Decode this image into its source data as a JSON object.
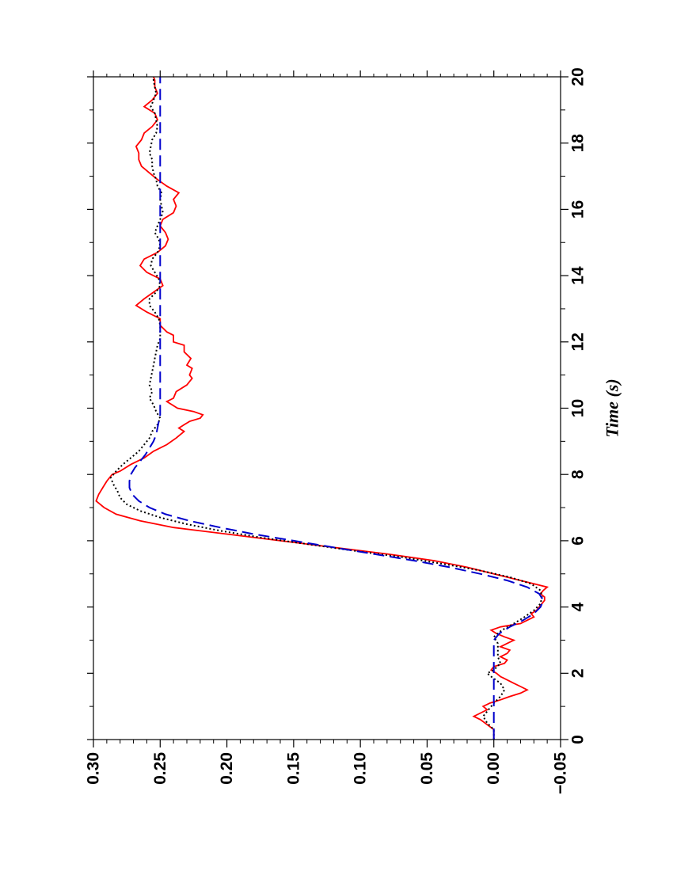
{
  "chart_data": {
    "type": "line",
    "orientation": "rotated-90-ccw",
    "xlabel": "Time (s)",
    "ylabel": "",
    "xlim": [
      0,
      20
    ],
    "ylim": [
      -0.05,
      0.3
    ],
    "x_ticks": [
      "0",
      "2",
      "4",
      "6",
      "8",
      "10",
      "12",
      "14",
      "16",
      "18",
      "20"
    ],
    "y_ticks": [
      "−0.05",
      "0.00",
      "0.05",
      "0.10",
      "0.15",
      "0.20",
      "0.25",
      "0.30"
    ],
    "grid": false,
    "legend": "none",
    "series": [
      {
        "color": "#ff0000",
        "style": "solid",
        "points": [
          [
            0.0,
            0.0
          ],
          [
            0.3,
            0.0
          ],
          [
            0.6,
            0.01
          ],
          [
            0.7,
            0.015
          ],
          [
            0.8,
            0.01
          ],
          [
            0.9,
            0.005
          ],
          [
            1.0,
            0.008
          ],
          [
            1.1,
            0.003
          ],
          [
            1.2,
            -0.005
          ],
          [
            1.3,
            -0.012
          ],
          [
            1.4,
            -0.02
          ],
          [
            1.5,
            -0.025
          ],
          [
            1.6,
            -0.02
          ],
          [
            1.7,
            -0.015
          ],
          [
            1.8,
            -0.01
          ],
          [
            1.9,
            -0.005
          ],
          [
            2.0,
            -0.002
          ],
          [
            2.1,
            0.002
          ],
          [
            2.2,
            0.0
          ],
          [
            2.3,
            -0.008
          ],
          [
            2.4,
            -0.01
          ],
          [
            2.5,
            -0.005
          ],
          [
            2.6,
            -0.01
          ],
          [
            2.7,
            -0.012
          ],
          [
            2.8,
            -0.005
          ],
          [
            2.9,
            -0.01
          ],
          [
            3.0,
            -0.015
          ],
          [
            3.1,
            -0.008
          ],
          [
            3.2,
            -0.002
          ],
          [
            3.3,
            0.002
          ],
          [
            3.4,
            -0.005
          ],
          [
            3.5,
            -0.02
          ],
          [
            3.6,
            -0.025
          ],
          [
            3.7,
            -0.03
          ],
          [
            3.8,
            -0.028
          ],
          [
            3.9,
            -0.032
          ],
          [
            4.0,
            -0.034
          ],
          [
            4.1,
            -0.036
          ],
          [
            4.2,
            -0.038
          ],
          [
            4.3,
            -0.038
          ],
          [
            4.4,
            -0.035
          ],
          [
            4.5,
            -0.037
          ],
          [
            4.6,
            -0.04
          ],
          [
            4.7,
            -0.03
          ],
          [
            4.8,
            -0.02
          ],
          [
            4.9,
            -0.01
          ],
          [
            5.0,
            0.0
          ],
          [
            5.2,
            0.02
          ],
          [
            5.4,
            0.045
          ],
          [
            5.6,
            0.08
          ],
          [
            5.8,
            0.12
          ],
          [
            6.0,
            0.16
          ],
          [
            6.2,
            0.2
          ],
          [
            6.4,
            0.24
          ],
          [
            6.6,
            0.265
          ],
          [
            6.8,
            0.283
          ],
          [
            7.0,
            0.292
          ],
          [
            7.2,
            0.298
          ],
          [
            7.4,
            0.296
          ],
          [
            7.6,
            0.293
          ],
          [
            7.8,
            0.29
          ],
          [
            8.0,
            0.286
          ],
          [
            8.1,
            0.28
          ],
          [
            8.3,
            0.272
          ],
          [
            8.5,
            0.262
          ],
          [
            8.7,
            0.255
          ],
          [
            8.9,
            0.245
          ],
          [
            9.1,
            0.238
          ],
          [
            9.3,
            0.232
          ],
          [
            9.4,
            0.236
          ],
          [
            9.5,
            0.232
          ],
          [
            9.6,
            0.228
          ],
          [
            9.7,
            0.22
          ],
          [
            9.8,
            0.218
          ],
          [
            9.9,
            0.225
          ],
          [
            10.0,
            0.237
          ],
          [
            10.2,
            0.245
          ],
          [
            10.3,
            0.24
          ],
          [
            10.5,
            0.238
          ],
          [
            10.7,
            0.23
          ],
          [
            10.9,
            0.226
          ],
          [
            11.0,
            0.228
          ],
          [
            11.2,
            0.226
          ],
          [
            11.3,
            0.23
          ],
          [
            11.5,
            0.227
          ],
          [
            11.7,
            0.232
          ],
          [
            11.9,
            0.232
          ],
          [
            12.0,
            0.24
          ],
          [
            12.2,
            0.24
          ],
          [
            12.3,
            0.245
          ],
          [
            12.5,
            0.25
          ],
          [
            12.7,
            0.25
          ],
          [
            12.9,
            0.26
          ],
          [
            13.1,
            0.268
          ],
          [
            13.3,
            0.262
          ],
          [
            13.5,
            0.255
          ],
          [
            13.7,
            0.248
          ],
          [
            13.9,
            0.25
          ],
          [
            14.1,
            0.26
          ],
          [
            14.3,
            0.265
          ],
          [
            14.5,
            0.262
          ],
          [
            14.7,
            0.252
          ],
          [
            14.9,
            0.246
          ],
          [
            15.1,
            0.244
          ],
          [
            15.3,
            0.246
          ],
          [
            15.5,
            0.25
          ],
          [
            15.7,
            0.248
          ],
          [
            15.9,
            0.24
          ],
          [
            16.1,
            0.238
          ],
          [
            16.3,
            0.24
          ],
          [
            16.5,
            0.236
          ],
          [
            16.7,
            0.245
          ],
          [
            16.9,
            0.252
          ],
          [
            17.1,
            0.258
          ],
          [
            17.3,
            0.264
          ],
          [
            17.5,
            0.266
          ],
          [
            17.7,
            0.266
          ],
          [
            17.9,
            0.268
          ],
          [
            18.1,
            0.264
          ],
          [
            18.3,
            0.262
          ],
          [
            18.5,
            0.256
          ],
          [
            18.7,
            0.252
          ],
          [
            18.9,
            0.254
          ],
          [
            19.1,
            0.262
          ],
          [
            19.3,
            0.256
          ],
          [
            19.5,
            0.252
          ],
          [
            19.7,
            0.254
          ],
          [
            19.9,
            0.254
          ],
          [
            20.0,
            0.255
          ]
        ]
      },
      {
        "color": "#000000",
        "style": "dotted",
        "points": [
          [
            0.0,
            0.0
          ],
          [
            0.3,
            0.0
          ],
          [
            0.5,
            0.005
          ],
          [
            0.7,
            0.008
          ],
          [
            0.9,
            0.004
          ],
          [
            1.1,
            0.0
          ],
          [
            1.3,
            -0.005
          ],
          [
            1.5,
            -0.008
          ],
          [
            1.7,
            -0.005
          ],
          [
            1.9,
            0.002
          ],
          [
            2.0,
            0.005
          ],
          [
            2.1,
            0.0
          ],
          [
            2.3,
            -0.005
          ],
          [
            2.5,
            -0.003
          ],
          [
            2.7,
            -0.003
          ],
          [
            2.9,
            -0.003
          ],
          [
            3.1,
            0.0
          ],
          [
            3.3,
            -0.006
          ],
          [
            3.5,
            -0.015
          ],
          [
            3.7,
            -0.023
          ],
          [
            3.9,
            -0.03
          ],
          [
            4.1,
            -0.035
          ],
          [
            4.3,
            -0.036
          ],
          [
            4.5,
            -0.035
          ],
          [
            4.7,
            -0.028
          ],
          [
            4.9,
            -0.012
          ],
          [
            5.1,
            0.01
          ],
          [
            5.3,
            0.038
          ],
          [
            5.5,
            0.068
          ],
          [
            5.7,
            0.105
          ],
          [
            5.9,
            0.14
          ],
          [
            6.1,
            0.175
          ],
          [
            6.3,
            0.205
          ],
          [
            6.5,
            0.23
          ],
          [
            6.7,
            0.25
          ],
          [
            6.9,
            0.265
          ],
          [
            7.1,
            0.275
          ],
          [
            7.3,
            0.28
          ],
          [
            7.5,
            0.282
          ],
          [
            7.7,
            0.285
          ],
          [
            7.9,
            0.287
          ],
          [
            8.1,
            0.283
          ],
          [
            8.3,
            0.278
          ],
          [
            8.5,
            0.272
          ],
          [
            8.7,
            0.266
          ],
          [
            8.9,
            0.262
          ],
          [
            9.1,
            0.258
          ],
          [
            9.3,
            0.256
          ],
          [
            9.5,
            0.252
          ],
          [
            9.7,
            0.25
          ],
          [
            9.9,
            0.253
          ],
          [
            10.1,
            0.255
          ],
          [
            10.3,
            0.258
          ],
          [
            10.5,
            0.256
          ],
          [
            10.7,
            0.258
          ],
          [
            10.9,
            0.257
          ],
          [
            11.1,
            0.256
          ],
          [
            11.3,
            0.255
          ],
          [
            11.5,
            0.254
          ],
          [
            11.7,
            0.253
          ],
          [
            11.9,
            0.252
          ],
          [
            12.1,
            0.25
          ],
          [
            12.3,
            0.25
          ],
          [
            12.5,
            0.25
          ],
          [
            12.7,
            0.251
          ],
          [
            12.9,
            0.254
          ],
          [
            13.1,
            0.258
          ],
          [
            13.3,
            0.258
          ],
          [
            13.5,
            0.253
          ],
          [
            13.7,
            0.25
          ],
          [
            13.9,
            0.251
          ],
          [
            14.1,
            0.254
          ],
          [
            14.3,
            0.257
          ],
          [
            14.5,
            0.256
          ],
          [
            14.7,
            0.252
          ],
          [
            14.9,
            0.25
          ],
          [
            15.1,
            0.251
          ],
          [
            15.3,
            0.254
          ],
          [
            15.5,
            0.252
          ],
          [
            15.7,
            0.25
          ],
          [
            15.9,
            0.248
          ],
          [
            16.1,
            0.249
          ],
          [
            16.3,
            0.25
          ],
          [
            16.5,
            0.249
          ],
          [
            16.7,
            0.252
          ],
          [
            16.9,
            0.253
          ],
          [
            17.1,
            0.255
          ],
          [
            17.3,
            0.256
          ],
          [
            17.5,
            0.256
          ],
          [
            17.7,
            0.258
          ],
          [
            17.9,
            0.257
          ],
          [
            18.1,
            0.256
          ],
          [
            18.3,
            0.253
          ],
          [
            18.5,
            0.252
          ],
          [
            18.7,
            0.253
          ],
          [
            18.9,
            0.254
          ],
          [
            19.1,
            0.257
          ],
          [
            19.3,
            0.255
          ],
          [
            19.5,
            0.253
          ],
          [
            19.7,
            0.254
          ],
          [
            19.9,
            0.255
          ],
          [
            20.0,
            0.255
          ]
        ]
      },
      {
        "color": "#0000cc",
        "style": "dashed",
        "points": [
          [
            0.0,
            0.0
          ],
          [
            0.5,
            0.0
          ],
          [
            1.0,
            0.0
          ],
          [
            1.5,
            0.0
          ],
          [
            2.0,
            0.0
          ],
          [
            2.5,
            0.0
          ],
          [
            3.0,
            0.0
          ],
          [
            3.2,
            -0.004
          ],
          [
            3.4,
            -0.012
          ],
          [
            3.6,
            -0.022
          ],
          [
            3.8,
            -0.03
          ],
          [
            4.0,
            -0.035
          ],
          [
            4.2,
            -0.037
          ],
          [
            4.4,
            -0.034
          ],
          [
            4.6,
            -0.025
          ],
          [
            4.8,
            -0.01
          ],
          [
            5.0,
            0.01
          ],
          [
            5.2,
            0.033
          ],
          [
            5.4,
            0.06
          ],
          [
            5.6,
            0.09
          ],
          [
            5.8,
            0.12
          ],
          [
            6.0,
            0.15
          ],
          [
            6.2,
            0.18
          ],
          [
            6.4,
            0.205
          ],
          [
            6.6,
            0.228
          ],
          [
            6.8,
            0.246
          ],
          [
            7.0,
            0.258
          ],
          [
            7.2,
            0.266
          ],
          [
            7.4,
            0.271
          ],
          [
            7.6,
            0.273
          ],
          [
            7.8,
            0.273
          ],
          [
            8.0,
            0.272
          ],
          [
            8.2,
            0.269
          ],
          [
            8.4,
            0.265
          ],
          [
            8.6,
            0.261
          ],
          [
            8.8,
            0.258
          ],
          [
            9.0,
            0.255
          ],
          [
            9.2,
            0.253
          ],
          [
            9.4,
            0.252
          ],
          [
            9.6,
            0.251
          ],
          [
            9.8,
            0.25
          ],
          [
            10.0,
            0.25
          ],
          [
            11.0,
            0.25
          ],
          [
            12.0,
            0.25
          ],
          [
            13.0,
            0.25
          ],
          [
            14.0,
            0.25
          ],
          [
            15.0,
            0.25
          ],
          [
            16.0,
            0.25
          ],
          [
            17.0,
            0.25
          ],
          [
            18.0,
            0.25
          ],
          [
            19.0,
            0.25
          ],
          [
            20.0,
            0.25
          ]
        ]
      }
    ]
  }
}
